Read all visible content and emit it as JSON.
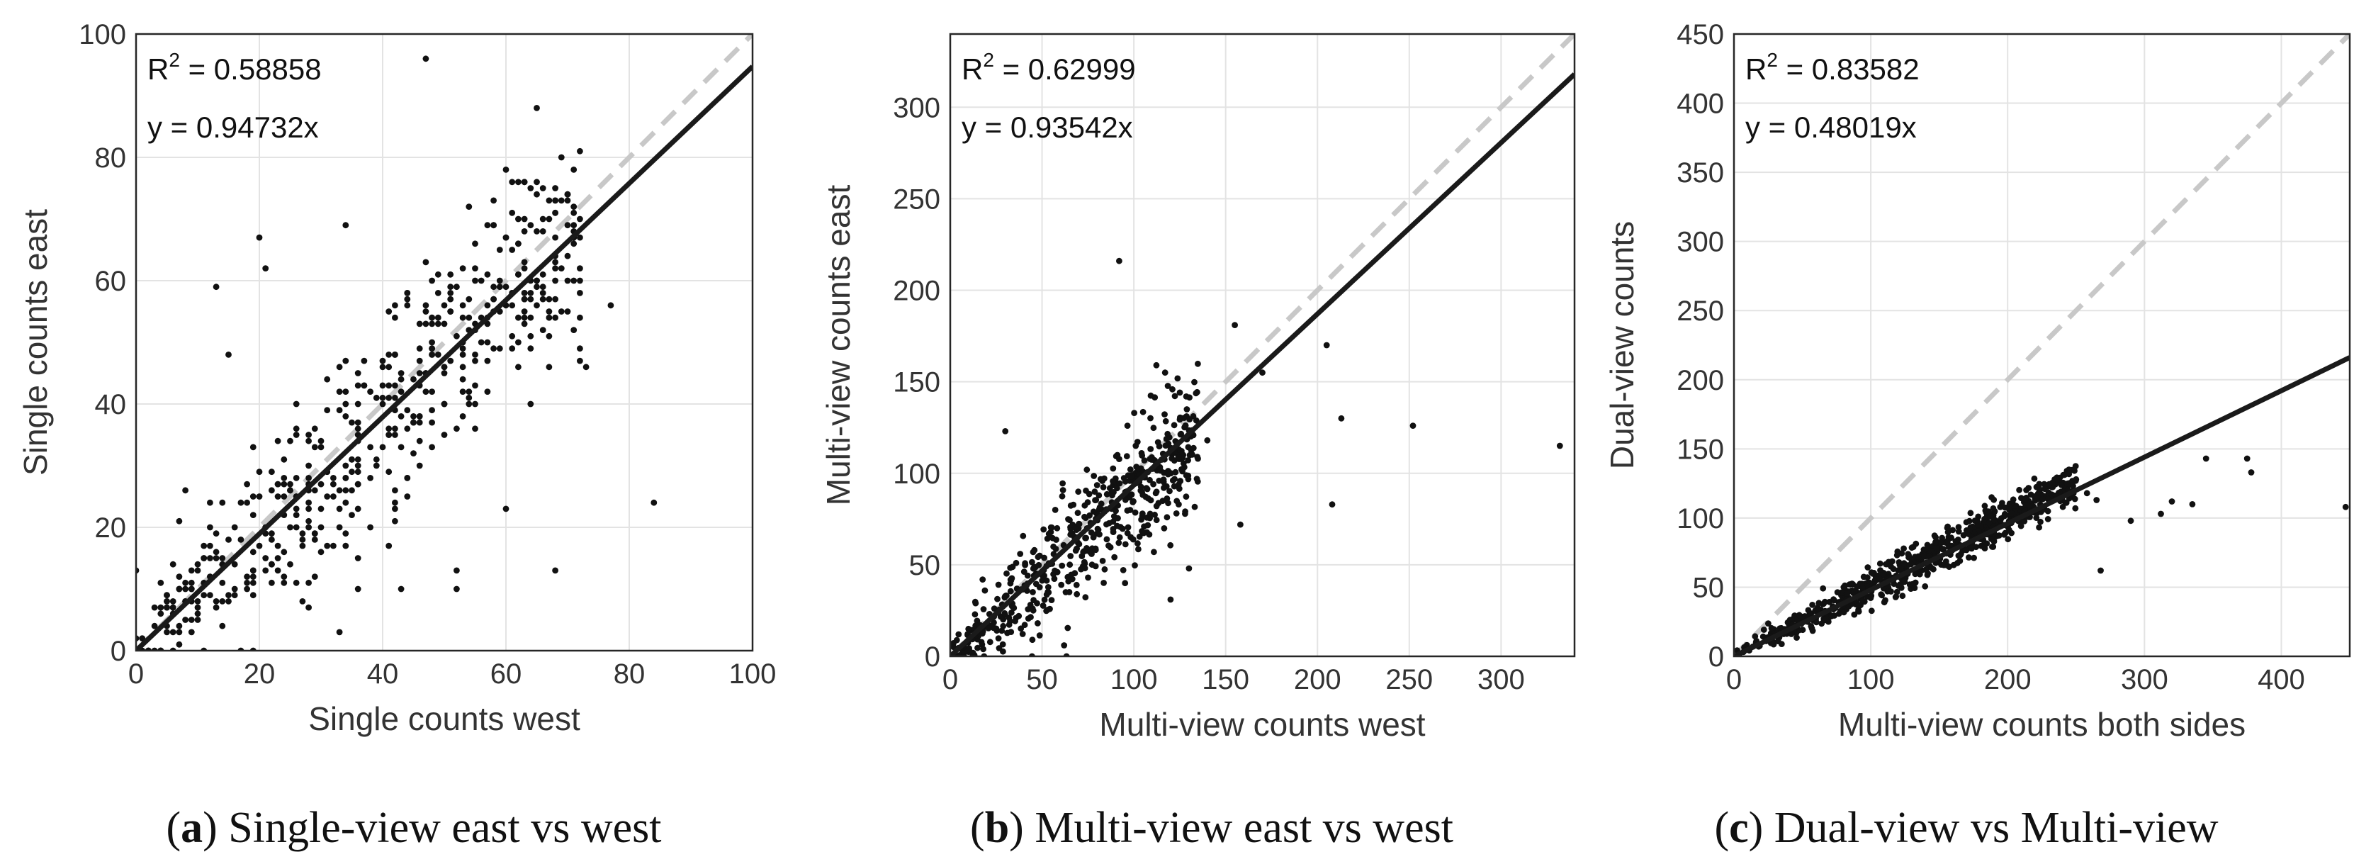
{
  "chart_data": [
    {
      "type": "scatter",
      "panel_label": "a",
      "caption": "Single-view east vs west",
      "xlabel": "Single counts west",
      "ylabel": "Single counts east",
      "xlim": [
        0,
        100
      ],
      "ylim": [
        0,
        100
      ],
      "xticks": [
        0,
        20,
        40,
        60,
        80,
        100
      ],
      "yticks": [
        0,
        20,
        40,
        60,
        80,
        100
      ],
      "grid": true,
      "r2_text": "R",
      "r2_value": " = 0.58858",
      "fit_text": "y = 0.94732x",
      "fit_slope": 0.94732,
      "identity_line": true,
      "n_points": 520,
      "cloud": {
        "slope": 0.95,
        "noise": 9.5,
        "xmax": 72,
        "seed": 11
      },
      "outliers": [
        [
          47,
          96
        ],
        [
          84,
          24
        ],
        [
          68,
          13
        ],
        [
          77,
          56
        ],
        [
          73,
          46
        ],
        [
          72,
          47
        ],
        [
          20,
          67
        ],
        [
          34,
          69
        ],
        [
          57,
          69
        ],
        [
          13,
          59
        ],
        [
          62,
          66
        ],
        [
          70,
          55
        ],
        [
          0,
          13
        ],
        [
          52,
          10
        ],
        [
          52,
          13
        ],
        [
          43,
          10
        ],
        [
          33,
          3
        ],
        [
          60,
          23
        ],
        [
          21,
          62
        ],
        [
          15,
          48
        ],
        [
          19,
          0
        ],
        [
          0,
          2
        ]
      ]
    },
    {
      "type": "scatter",
      "panel_label": "b",
      "caption": "Multi-view east vs west",
      "xlabel": "Multi-view counts west",
      "ylabel": "Multi-view counts east",
      "xlim": [
        0,
        340
      ],
      "ylim": [
        0,
        340
      ],
      "xticks": [
        0,
        50,
        100,
        150,
        200,
        250,
        300
      ],
      "yticks": [
        0,
        50,
        100,
        150,
        200,
        250,
        300
      ],
      "grid": true,
      "r2_text": "R",
      "r2_value": " = 0.62999",
      "fit_text": "y = 0.93542x",
      "fit_slope": 0.93542,
      "identity_line": true,
      "n_points": 560,
      "cloud": {
        "slope": 0.9,
        "noise": 17,
        "xmax": 135,
        "seed": 23
      },
      "outliers": [
        [
          92,
          216
        ],
        [
          155,
          181
        ],
        [
          205,
          170
        ],
        [
          213,
          130
        ],
        [
          252,
          126
        ],
        [
          332,
          115
        ],
        [
          208,
          83
        ],
        [
          170,
          155
        ],
        [
          140,
          118
        ],
        [
          120,
          31
        ],
        [
          62,
          6
        ],
        [
          30,
          123
        ],
        [
          158,
          72
        ],
        [
          130,
          48
        ],
        [
          117,
          155
        ]
      ]
    },
    {
      "type": "scatter",
      "panel_label": "c",
      "caption": "Dual-view vs Multi-view",
      "xlabel": "Multi-view counts both sides",
      "ylabel": "Dual-view counts",
      "xlim": [
        0,
        450
      ],
      "ylim": [
        0,
        450
      ],
      "xticks": [
        0,
        100,
        200,
        300,
        400
      ],
      "yticks": [
        0,
        50,
        100,
        150,
        200,
        250,
        300,
        350,
        400,
        450
      ],
      "grid": true,
      "r2_text": "R",
      "r2_value": " = 0.83582",
      "fit_text": "y = 0.48019x",
      "fit_slope": 0.48019,
      "identity_line": true,
      "n_points": 720,
      "cloud": {
        "slope": 0.5,
        "noise": 7.5,
        "xmax": 250,
        "seed": 37
      },
      "outliers": [
        [
          345,
          143
        ],
        [
          375,
          143
        ],
        [
          378,
          133
        ],
        [
          447,
          108
        ],
        [
          320,
          112
        ],
        [
          335,
          110
        ],
        [
          312,
          103
        ],
        [
          290,
          98
        ],
        [
          268,
          62
        ],
        [
          258,
          118
        ],
        [
          265,
          113
        ],
        [
          250,
          128
        ]
      ]
    }
  ]
}
